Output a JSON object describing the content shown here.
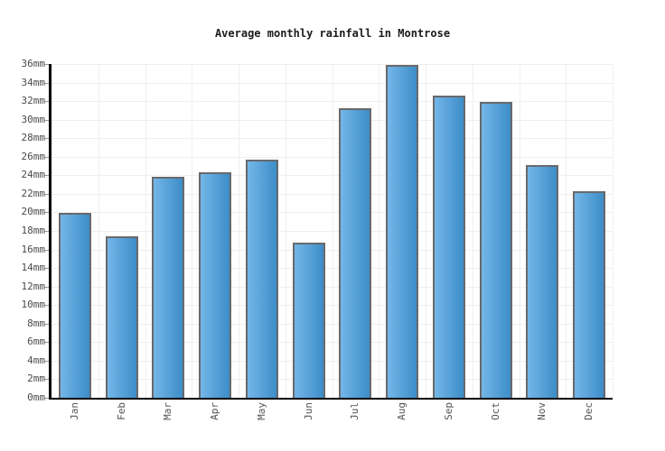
{
  "title": "Average monthly rainfall in Montrose",
  "chart_data": {
    "type": "bar",
    "title": "Average monthly rainfall in Montrose",
    "categories": [
      "Jan",
      "Feb",
      "Mar",
      "Apr",
      "May",
      "Jun",
      "Jul",
      "Aug",
      "Sep",
      "Oct",
      "Nov",
      "Dec"
    ],
    "values": [
      19.9,
      17.4,
      23.8,
      24.3,
      25.7,
      16.7,
      31.2,
      35.9,
      32.6,
      31.9,
      25.1,
      22.3
    ],
    "unit": "mm",
    "xlabel": "",
    "ylabel": "",
    "ylim": [
      0,
      36
    ],
    "ytick_step": 2,
    "ytick_labels": [
      "0mm",
      "2mm",
      "4mm",
      "6mm",
      "8mm",
      "10mm",
      "12mm",
      "14mm",
      "16mm",
      "18mm",
      "20mm",
      "22mm",
      "24mm",
      "26mm",
      "28mm",
      "30mm",
      "32mm",
      "34mm",
      "36mm"
    ],
    "grid": true,
    "legend": "none",
    "colors": {
      "bar_gradient_left": "#74b6e8",
      "bar_gradient_right": "#3c8dc8",
      "bar_border": "#69696c",
      "gridline": "#efefef",
      "axis": "#000000",
      "tick": "#999999",
      "title_text": "#1a1a1a",
      "ytick_text": "#4a4a4a",
      "xtick_text": "#555555",
      "background": "#ffffff"
    }
  }
}
